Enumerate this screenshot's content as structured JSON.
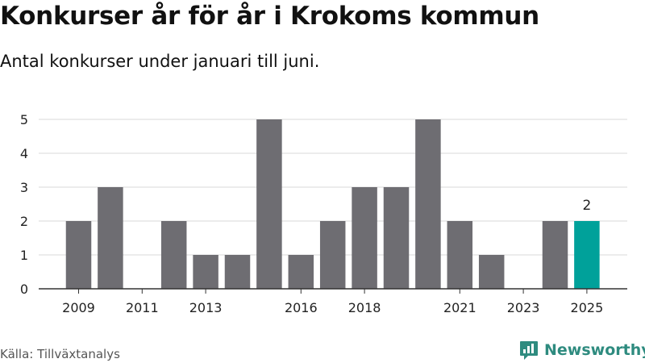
{
  "header": {
    "title": "Konkurser år för år i Krokoms kommun",
    "subtitle": "Antal konkurser under januari till juni."
  },
  "footer": {
    "source": "Källa: Tillväxtanalys",
    "brand": "Newsworthy"
  },
  "colors": {
    "bar": "#6e6d72",
    "highlight": "#00a19a",
    "brand": "#2e8b7f",
    "grid": "#d8d8d8",
    "axis": "#333333"
  },
  "chart_data": {
    "type": "bar",
    "categories": [
      2009,
      2010,
      2011,
      2012,
      2013,
      2014,
      2015,
      2016,
      2017,
      2018,
      2019,
      2020,
      2021,
      2022,
      2023,
      2024,
      2025
    ],
    "values": [
      2,
      3,
      0,
      2,
      1,
      1,
      5,
      1,
      2,
      3,
      3,
      5,
      2,
      1,
      0,
      2,
      2
    ],
    "x_tick_labels": [
      "2009",
      "2011",
      "2013",
      "2016",
      "2018",
      "2021",
      "2023",
      "2025"
    ],
    "y_ticks": [
      0,
      1,
      2,
      3,
      4,
      5
    ],
    "ylim": [
      0,
      5
    ],
    "highlight_category": 2025,
    "data_labels": [
      {
        "category": 2025,
        "text": "2"
      }
    ],
    "grid": true,
    "legend": "none"
  }
}
